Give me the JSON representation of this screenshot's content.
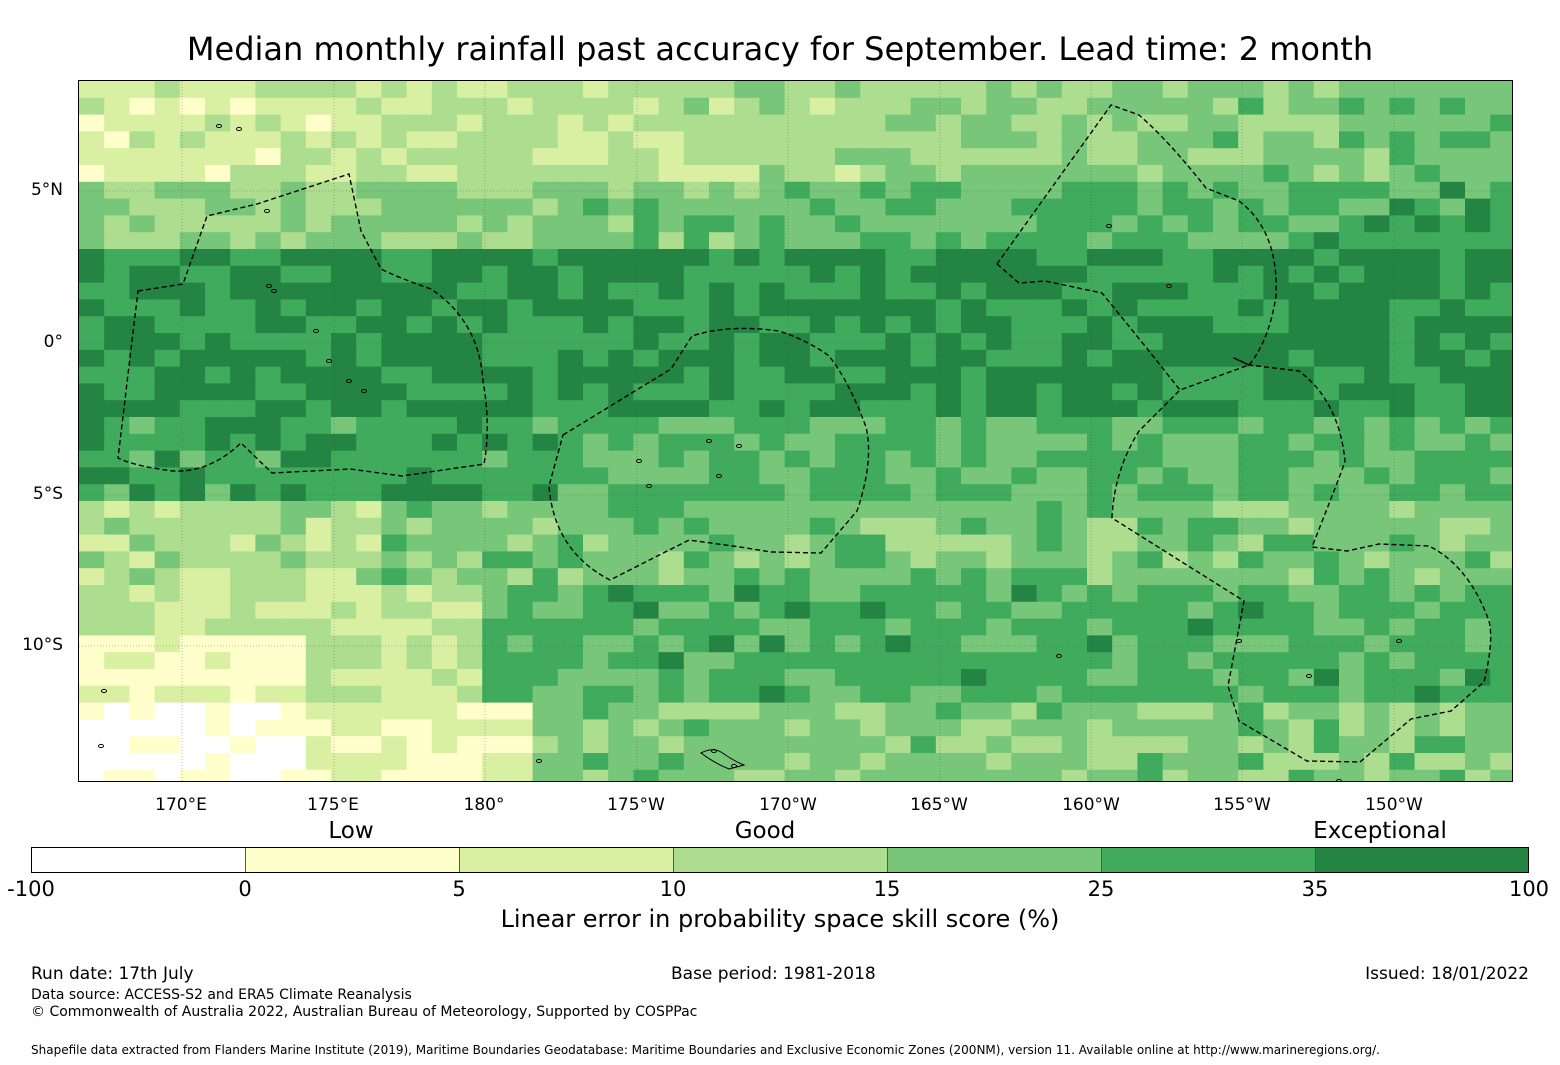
{
  "title": "Median monthly rainfall past accuracy for September. Lead time: 2 month",
  "map": {
    "lat_labels": [
      "5°N",
      "0°",
      "5°S",
      "10°S"
    ],
    "lon_labels": [
      "170°E",
      "175°E",
      "180°",
      "175°W",
      "170°W",
      "165°W",
      "160°W",
      "155°W",
      "150°W"
    ]
  },
  "legend": {
    "categories": [
      "Low",
      "Good",
      "Exceptional"
    ],
    "title": "Linear error in probability space skill score (%)",
    "ticks": [
      "-100",
      "0",
      "5",
      "10",
      "15",
      "25",
      "35",
      "100"
    ],
    "colors": [
      "#ffffff",
      "#ffffcc",
      "#d9f0a3",
      "#addd8e",
      "#78c679",
      "#41ab5d",
      "#238443"
    ]
  },
  "footer": {
    "run_date": "Run date: 17th July",
    "base_period": "Base period: 1981-2018",
    "issued": "Issued: 18/01/2022",
    "data_source": "Data source: ACCESS-S2 and ERA5 Climate Reanalysis",
    "copyright": "© Commonwealth of Australia 2022, Australian Bureau of Meteorology, Supported by COSPPac",
    "shapefile": "Shapefile data extracted from Flanders Marine Institute (2019), Maritime Boundaries Geodatabase: Maritime Boundaries and Exclusive Economic Zones (200NM), version 11. Available online at http://www.marineregions.org/."
  }
}
